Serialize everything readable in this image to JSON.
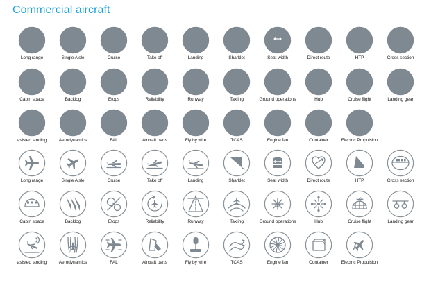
{
  "header": {
    "title": "Commercial aircraft"
  },
  "styles": {
    "filled": {
      "fill": "#7f8991",
      "stroke": "#7f8991",
      "glyph": "#ffffff"
    },
    "outline": {
      "fill": "#ffffff",
      "stroke": "#8a9298",
      "glyph": "#7f8991"
    }
  },
  "sets": [
    {
      "style": "filled",
      "rows": [
        [
          {
            "label": "Long range",
            "icon": "long-range-icon"
          },
          {
            "label": "Single Aisle",
            "icon": "single-aisle-icon"
          },
          {
            "label": "Cruise",
            "icon": "cruise-icon"
          },
          {
            "label": "Take off",
            "icon": "take-off-icon"
          },
          {
            "label": "Landing",
            "icon": "landing-icon"
          },
          {
            "label": "Sharklet",
            "icon": "sharklet-icon"
          },
          {
            "label": "Seat width",
            "icon": "seat-width-icon"
          },
          {
            "label": "Direct route",
            "icon": "direct-route-icon"
          },
          {
            "label": "HTP",
            "icon": "htp-icon"
          },
          {
            "label": "Cross section",
            "icon": "cross-section-icon"
          }
        ],
        [
          {
            "label": "Cabin space",
            "icon": "cabin-space-icon"
          },
          {
            "label": "Backlog",
            "icon": "backlog-icon"
          },
          {
            "label": "Etops",
            "icon": "etops-icon"
          },
          {
            "label": "Reliability",
            "icon": "reliability-icon"
          },
          {
            "label": "Runway",
            "icon": "runway-icon"
          },
          {
            "label": "Taxiing",
            "icon": "taxiing-icon"
          },
          {
            "label": "Ground operations",
            "icon": "ground-operations-icon"
          },
          {
            "label": "Hub",
            "icon": "hub-icon"
          },
          {
            "label": "Cruise flight",
            "icon": "cruise-flight-icon"
          },
          {
            "label": "Landing gear",
            "icon": "landing-gear-icon"
          }
        ],
        [
          {
            "label": "asisted landing",
            "icon": "assisted-landing-icon"
          },
          {
            "label": "Aerodynamics",
            "icon": "aerodynamics-icon"
          },
          {
            "label": "FAL",
            "icon": "fal-icon"
          },
          {
            "label": "Aircraft parts",
            "icon": "aircraft-parts-icon"
          },
          {
            "label": "Fly by wire",
            "icon": "fly-by-wire-icon"
          },
          {
            "label": "TCAS",
            "icon": "tcas-icon"
          },
          {
            "label": "Engine fan",
            "icon": "engine-fan-icon"
          },
          {
            "label": "Container",
            "icon": "container-icon"
          },
          {
            "label": "Electric Propulsion",
            "icon": "electric-propulsion-icon"
          }
        ]
      ]
    },
    {
      "style": "outline",
      "rows": [
        [
          {
            "label": "Long range",
            "icon": "long-range-icon"
          },
          {
            "label": "Single Aisle",
            "icon": "single-aisle-icon"
          },
          {
            "label": "Cruise",
            "icon": "cruise-icon"
          },
          {
            "label": "Take off",
            "icon": "take-off-icon"
          },
          {
            "label": "Landing",
            "icon": "landing-icon"
          },
          {
            "label": "Sharklet",
            "icon": "sharklet-icon"
          },
          {
            "label": "Seat width",
            "icon": "seat-width-icon"
          },
          {
            "label": "Direct route",
            "icon": "direct-route-icon"
          },
          {
            "label": "HTP",
            "icon": "htp-icon"
          },
          {
            "label": "Cross section",
            "icon": "cross-section-icon"
          }
        ],
        [
          {
            "label": "Cabin space",
            "icon": "cabin-space-icon"
          },
          {
            "label": "Backlog",
            "icon": "backlog-icon"
          },
          {
            "label": "Etops",
            "icon": "etops-icon"
          },
          {
            "label": "Reliability",
            "icon": "reliability-icon"
          },
          {
            "label": "Runway",
            "icon": "runway-icon"
          },
          {
            "label": "Taxiing",
            "icon": "taxiing-icon"
          },
          {
            "label": "Ground operations",
            "icon": "ground-operations-icon"
          },
          {
            "label": "Hub",
            "icon": "hub-icon"
          },
          {
            "label": "Cruise flight",
            "icon": "cruise-flight-icon"
          },
          {
            "label": "Landing gear",
            "icon": "landing-gear-icon"
          }
        ],
        [
          {
            "label": "asisted landing",
            "icon": "assisted-landing-icon"
          },
          {
            "label": "Aerodynamics",
            "icon": "aerodynamics-icon"
          },
          {
            "label": "FAL",
            "icon": "fal-icon"
          },
          {
            "label": "Aircraft parts",
            "icon": "aircraft-parts-icon"
          },
          {
            "label": "Fly by wire",
            "icon": "fly-by-wire-icon"
          },
          {
            "label": "TCAS",
            "icon": "tcas-icon"
          },
          {
            "label": "Engine fan",
            "icon": "engine-fan-icon"
          },
          {
            "label": "Container",
            "icon": "container-icon"
          },
          {
            "label": "Electric Propulsion",
            "icon": "electric-propulsion-icon"
          }
        ]
      ]
    }
  ]
}
